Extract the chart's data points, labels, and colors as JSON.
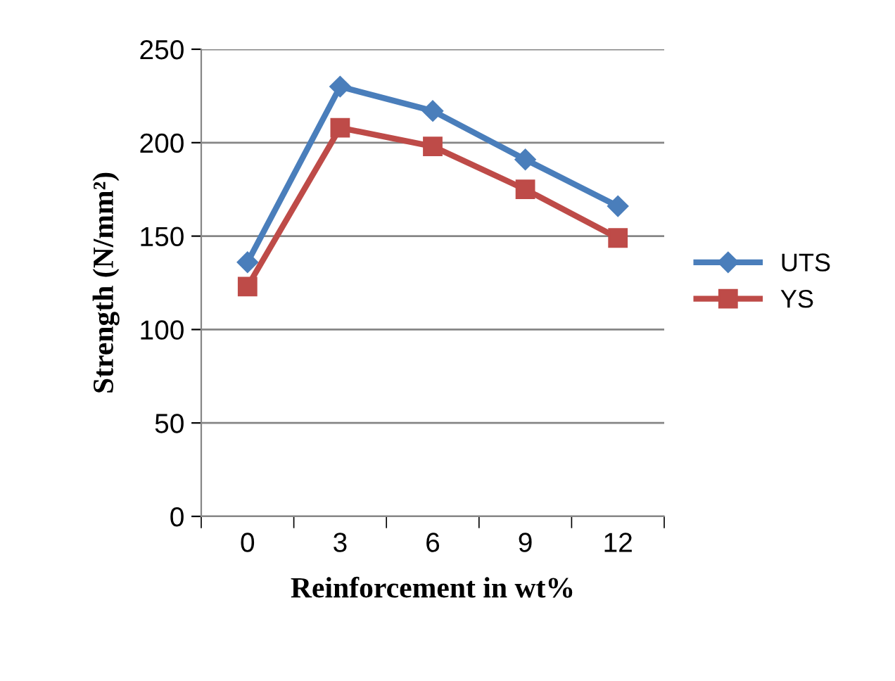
{
  "chart_data": {
    "type": "line",
    "xlabel": "Reinforcement in wt%",
    "ylabel": "Strength (N/mm²)",
    "categories": [
      "0",
      "3",
      "6",
      "9",
      "12"
    ],
    "series": [
      {
        "name": "UTS",
        "color": "#4a7ebb",
        "marker": "diamond",
        "values": [
          136,
          230,
          217,
          191,
          166
        ]
      },
      {
        "name": "YS",
        "color": "#be4b48",
        "marker": "square",
        "values": [
          123,
          208,
          198,
          175,
          149
        ]
      }
    ],
    "ylim": [
      0,
      250
    ],
    "yticks": [
      0,
      50,
      100,
      150,
      200,
      250
    ],
    "grid": "y",
    "legend": "right",
    "line_style": "solid"
  }
}
